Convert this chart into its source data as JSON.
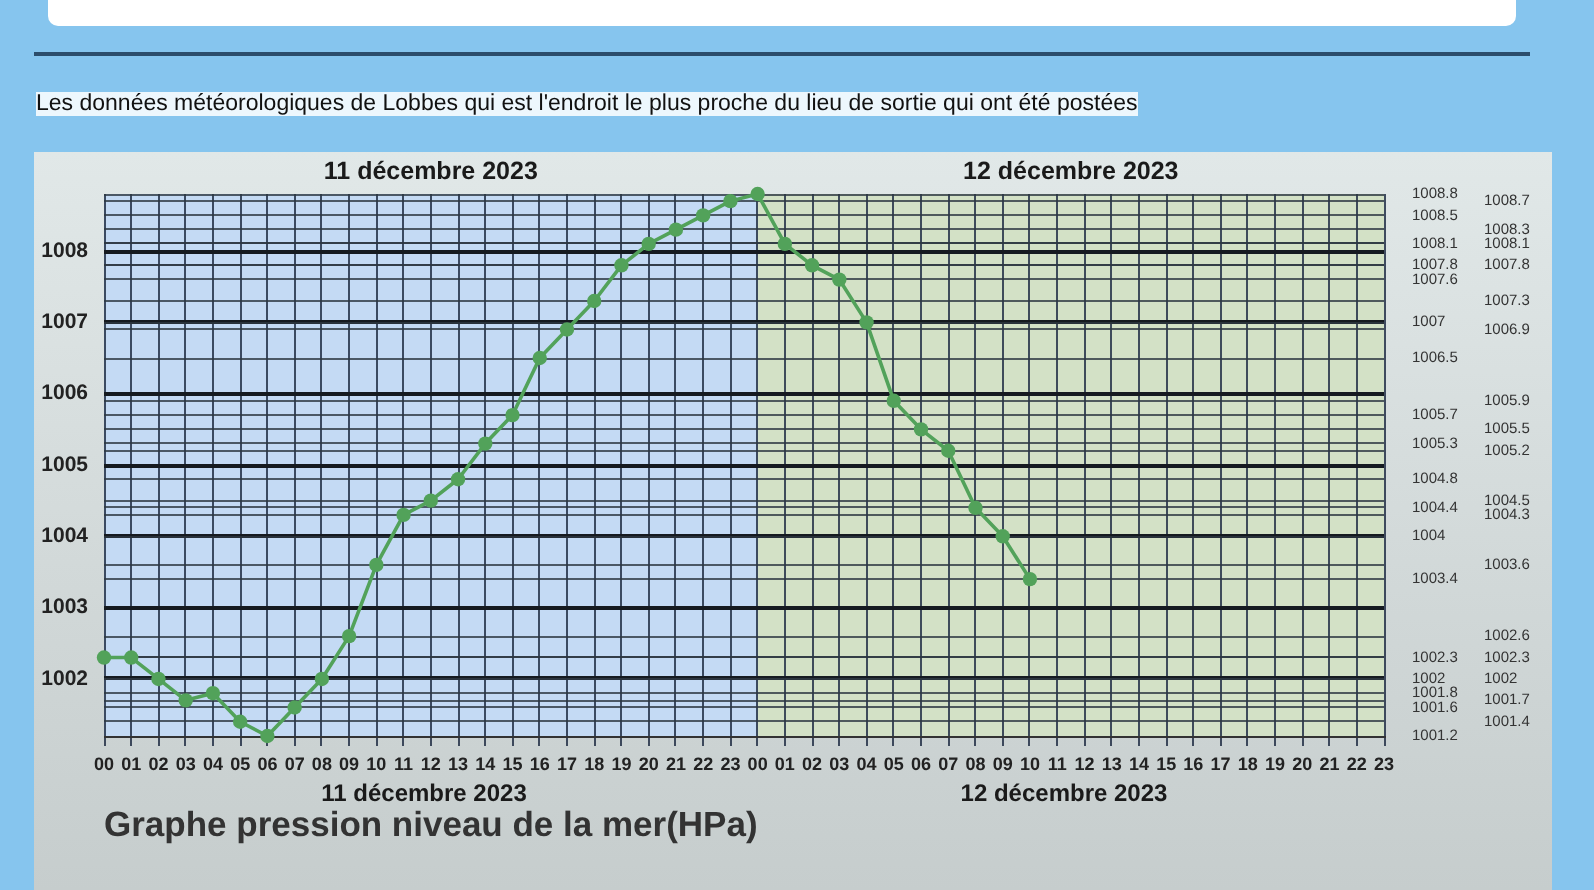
{
  "chart_data": {
    "type": "line",
    "title": "Graphe pression niveau de la mer(HPa)",
    "subtitle": "Les données météorologiques de Lobbes qui est l'endroit le plus proche du lieu de sortie qui ont été postées",
    "x": [
      0,
      1,
      2,
      3,
      4,
      5,
      6,
      7,
      8,
      9,
      10,
      11,
      12,
      13,
      14,
      15,
      16,
      17,
      18,
      19,
      20,
      21,
      22,
      23,
      24,
      25,
      26,
      27,
      28,
      29,
      30,
      31,
      32,
      33,
      34
    ],
    "values": [
      1002.3,
      1002.3,
      1002,
      1001.7,
      1001.8,
      1001.4,
      1001.2,
      1001.6,
      1002,
      1002.6,
      1003.6,
      1004.3,
      1004.5,
      1004.8,
      1005.3,
      1005.7,
      1006.5,
      1006.9,
      1007.3,
      1007.8,
      1008.1,
      1008.3,
      1008.5,
      1008.7,
      1008.8,
      1008.1,
      1007.8,
      1007.6,
      1007,
      1005.9,
      1005.5,
      1005.2,
      1004.4,
      1004,
      1003.4
    ],
    "color": "#52a25a",
    "xlim": [
      0,
      47
    ],
    "xticks": [
      {
        "value": 0,
        "label": "00"
      },
      {
        "value": 1,
        "label": "01"
      },
      {
        "value": 2,
        "label": "02"
      },
      {
        "value": 3,
        "label": "03"
      },
      {
        "value": 4,
        "label": "04"
      },
      {
        "value": 5,
        "label": "05"
      },
      {
        "value": 6,
        "label": "06"
      },
      {
        "value": 7,
        "label": "07"
      },
      {
        "value": 8,
        "label": "08"
      },
      {
        "value": 9,
        "label": "09"
      },
      {
        "value": 10,
        "label": "10"
      },
      {
        "value": 11,
        "label": "11"
      },
      {
        "value": 12,
        "label": "12"
      },
      {
        "value": 13,
        "label": "13"
      },
      {
        "value": 14,
        "label": "14"
      },
      {
        "value": 15,
        "label": "15"
      },
      {
        "value": 16,
        "label": "16"
      },
      {
        "value": 17,
        "label": "17"
      },
      {
        "value": 18,
        "label": "18"
      },
      {
        "value": 19,
        "label": "19"
      },
      {
        "value": 20,
        "label": "20"
      },
      {
        "value": 21,
        "label": "21"
      },
      {
        "value": 22,
        "label": "22"
      },
      {
        "value": 23,
        "label": "23"
      },
      {
        "value": 24,
        "label": "00"
      },
      {
        "value": 25,
        "label": "01"
      },
      {
        "value": 26,
        "label": "02"
      },
      {
        "value": 27,
        "label": "03"
      },
      {
        "value": 28,
        "label": "04"
      },
      {
        "value": 29,
        "label": "05"
      },
      {
        "value": 30,
        "label": "06"
      },
      {
        "value": 31,
        "label": "07"
      },
      {
        "value": 32,
        "label": "08"
      },
      {
        "value": 33,
        "label": "09"
      },
      {
        "value": 34,
        "label": "10"
      },
      {
        "value": 35,
        "label": "11"
      },
      {
        "value": 36,
        "label": "12"
      },
      {
        "value": 37,
        "label": "13"
      },
      {
        "value": 38,
        "label": "14"
      },
      {
        "value": 39,
        "label": "15"
      },
      {
        "value": 40,
        "label": "16"
      },
      {
        "value": 41,
        "label": "17"
      },
      {
        "value": 42,
        "label": "18"
      },
      {
        "value": 43,
        "label": "19"
      },
      {
        "value": 44,
        "label": "20"
      },
      {
        "value": 45,
        "label": "21"
      },
      {
        "value": 46,
        "label": "22"
      },
      {
        "value": 47,
        "label": "23"
      }
    ],
    "ylim": [
      1001.2,
      1008.8
    ],
    "yticks": [
      1002,
      1003,
      1004,
      1005,
      1006,
      1007,
      1008
    ],
    "y2lim": [
      1001.2,
      1008.8
    ],
    "y2ticks": [
      1001.2,
      1001.6,
      1001.8,
      1002,
      1002.3,
      1003.4,
      1004,
      1004.4,
      1004.8,
      1005.3,
      1005.7,
      1006.5,
      1007,
      1007.6,
      1007.8,
      1008.1,
      1008.5,
      1008.8
    ],
    "y3lim": [
      1001.2,
      1008.8
    ],
    "y3ticks": [
      1001.4,
      1001.7,
      1002,
      1002.3,
      1002.6,
      1003.6,
      1004.3,
      1004.5,
      1005.2,
      1005.5,
      1005.9,
      1006.9,
      1007.3,
      1007.8,
      1008.1,
      1008.3,
      1008.7
    ],
    "bands": [
      {
        "axis": "x",
        "from": 0,
        "to": 24,
        "label": "11 décembre 2023",
        "color": "#c4daf4"
      },
      {
        "axis": "x",
        "from": 24,
        "to": 47,
        "label": "12 décembre 2023",
        "color": "#d3e1c6"
      }
    ],
    "annotations": [
      "11 décembre 2023",
      "12 décembre 2023"
    ],
    "grid": true,
    "marker": "circle",
    "line_style": "solid"
  }
}
